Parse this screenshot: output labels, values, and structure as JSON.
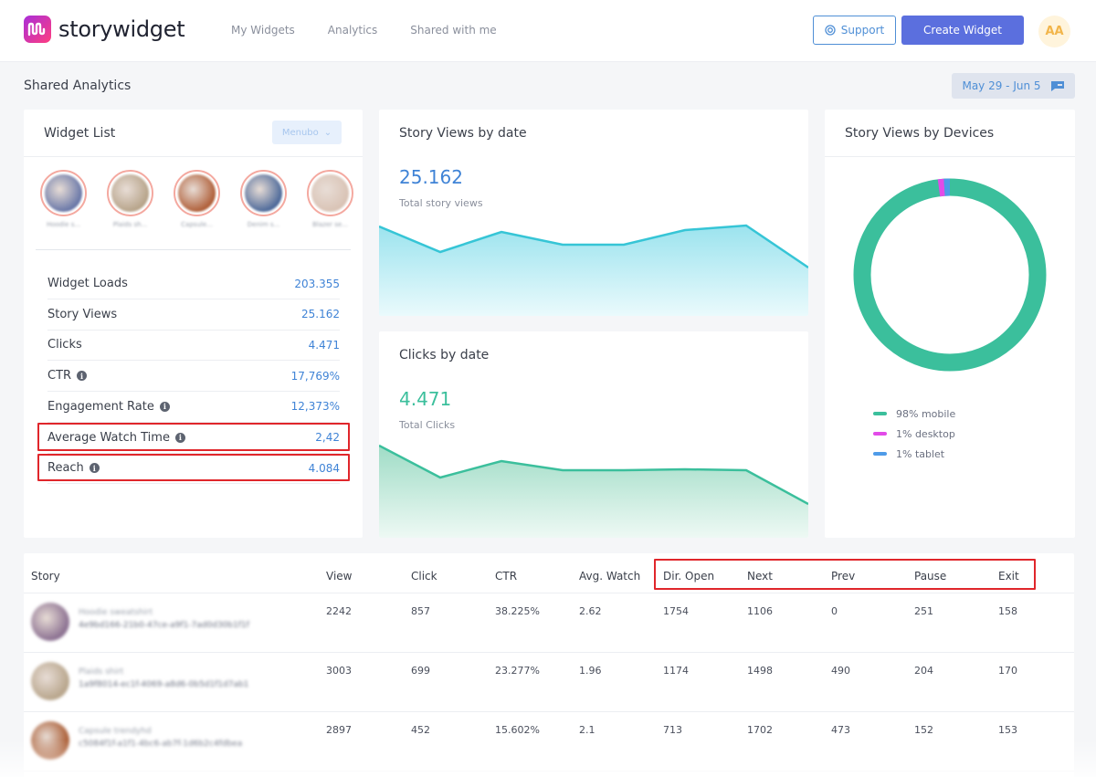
{
  "app": {
    "name": "storywidget",
    "nav": [
      "My Widgets",
      "Analytics",
      "Shared with me"
    ],
    "support_label": "Support",
    "create_label": "Create Widget",
    "avatar_initials": "AA"
  },
  "page": {
    "title": "Shared Analytics",
    "date_range": "May 29 - Jun 5"
  },
  "widget_list": {
    "title": "Widget List",
    "menu_label": "Menubo",
    "stories": [
      {
        "label": "Hoodie s...",
        "color": "#6a78a8"
      },
      {
        "label": "Plaids sh...",
        "color": "#b7a48a"
      },
      {
        "label": "Capsule...",
        "color": "#b0603a"
      },
      {
        "label": "Denim s...",
        "color": "#4e6a9a"
      },
      {
        "label": "Blazer se...",
        "color": "#d9c3b5"
      }
    ],
    "metrics": [
      {
        "label": "Widget Loads",
        "value": "203.355",
        "info": false
      },
      {
        "label": "Story Views",
        "value": "25.162",
        "info": false
      },
      {
        "label": "Clicks",
        "value": "4.471",
        "info": false
      },
      {
        "label": "CTR",
        "value": "17,769%",
        "info": true
      },
      {
        "label": "Engagement Rate",
        "value": "12,373%",
        "info": true
      },
      {
        "label": "Average Watch Time",
        "value": "2,42",
        "info": true
      },
      {
        "label": "Reach",
        "value": "4.084",
        "info": true
      }
    ]
  },
  "views_chart": {
    "title": "Story Views by date",
    "total": "25.162",
    "subtitle": "Total story views",
    "color": "#36c5d6"
  },
  "clicks_chart": {
    "title": "Clicks by date",
    "total": "4.471",
    "subtitle": "Total Clicks",
    "color": "#3bbf9c"
  },
  "devices": {
    "title": "Story Views by Devices",
    "legend": [
      {
        "label": "98% mobile",
        "color": "#3bbf9c"
      },
      {
        "label": "1% desktop",
        "color": "#e24be8"
      },
      {
        "label": "1% tablet",
        "color": "#4e9be8"
      }
    ]
  },
  "table": {
    "columns": [
      "Story",
      "View",
      "Click",
      "CTR",
      "Avg. Watch",
      "Dir. Open",
      "Next",
      "Prev",
      "Pause",
      "Exit"
    ],
    "rows": [
      {
        "name": "Hoodie sweatshirt",
        "id": "4e9bd166-21b0-47ce-a9f1-7ad0d30b1f1f",
        "color": "#8a6f90",
        "cells": [
          "2242",
          "857",
          "38.225%",
          "2.62",
          "1754",
          "1106",
          "0",
          "251",
          "158"
        ]
      },
      {
        "name": "Plaids shirt",
        "id": "1a9f8014-ec1f-4069-a8d6-0b5d1f1d7ab1",
        "color": "#b7a48a",
        "cells": [
          "3003",
          "699",
          "23.277%",
          "1.96",
          "1174",
          "1498",
          "490",
          "204",
          "170"
        ]
      },
      {
        "name": "Capsule trendyhd",
        "id": "c5084f1f-a1f1-4bc6-ab7f-1d6b2c4fdbea",
        "color": "#a8582e",
        "cells": [
          "2897",
          "452",
          "15.602%",
          "2.1",
          "713",
          "1702",
          "473",
          "152",
          "153"
        ]
      }
    ]
  }
}
